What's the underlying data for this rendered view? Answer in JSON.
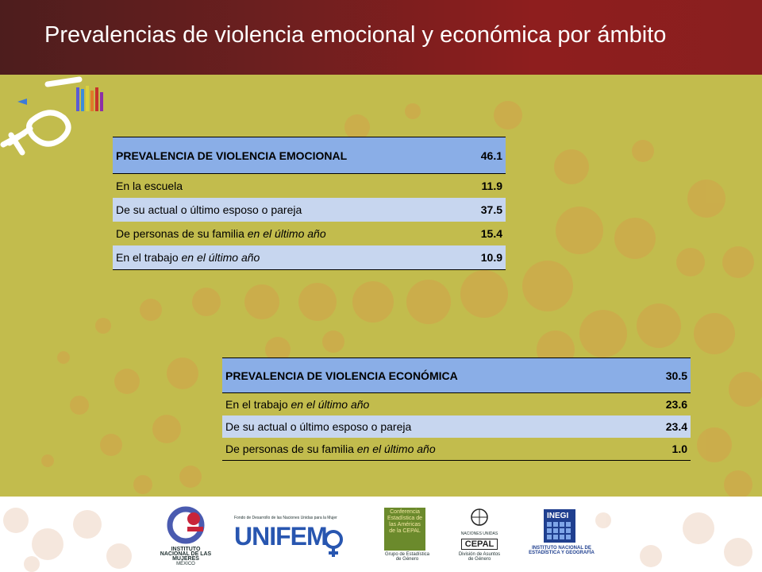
{
  "header": {
    "title": "Prevalencias de violencia emocional y económica por ámbito"
  },
  "table_emocional": {
    "header_label": "PREVALENCIA  DE VIOLENCIA EMOCIONAL",
    "header_value": "46.1",
    "rows": [
      {
        "label": "En la escuela",
        "label_italic": "",
        "value": "11.9"
      },
      {
        "label": "De su actual o último esposo o pareja",
        "label_italic": "",
        "value": "37.5"
      },
      {
        "label": "De personas de su familia ",
        "label_italic": "en el último año",
        "value": "15.4"
      },
      {
        "label": "En el trabajo ",
        "label_italic": "en el último año",
        "value": "10.9"
      }
    ]
  },
  "table_economica": {
    "header_label": "PREVALENCIA  DE VIOLENCIA ECONÓMICA",
    "header_value": "30.5",
    "rows": [
      {
        "label": "En el trabajo ",
        "label_italic": "en el último año",
        "value": "23.6"
      },
      {
        "label": "De su actual o último esposo o pareja",
        "label_italic": "",
        "value": "23.4"
      },
      {
        "label": "De personas de su familia ",
        "label_italic": "en el último año",
        "value": "1.0"
      }
    ]
  },
  "footer": {
    "inmujeres": "INSTITUTO NACIONAL DE LAS MUJERES",
    "inmujeres_sub": "MÉXICO",
    "unifem_top": "Fondo de Desarrollo de las Naciones Unidas para la Mujer",
    "unifem": "UNIFEM",
    "cepal_conf": "Conferencia Estadística de las Américas de la CEPAL",
    "cepal_group": "Grupo de Estadística de Género",
    "un_label": "NACIONES UNIDAS",
    "cepal": "CEPAL",
    "cepal_div": "División de Asuntos de Género",
    "inegi": "INEGI",
    "inegi_full": "INSTITUTO NACIONAL DE ESTADÍSTICA Y GEOGRAFÍA"
  },
  "colors": {
    "background": "#c2bc4d",
    "header": "#8e1e1e",
    "table_header": "#8aaee7",
    "table_light": "#c7d6ef"
  }
}
